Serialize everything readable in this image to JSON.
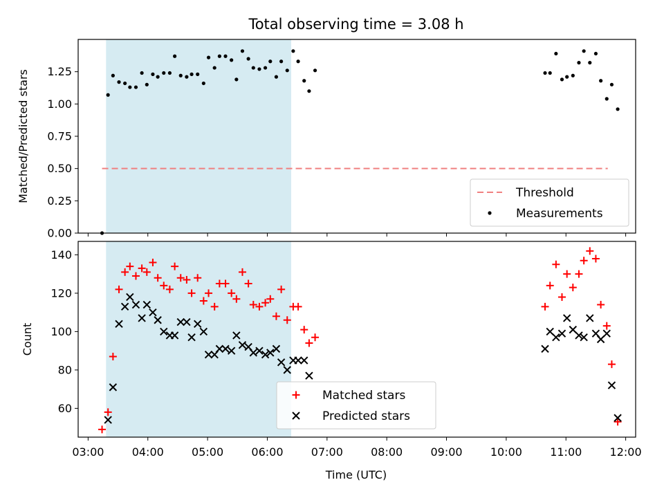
{
  "chart_data": {
    "type": "scatter",
    "title": "Total observing time = 3.08 h",
    "xlabel": "Time (UTC)",
    "xlim": [
      "03:00",
      "12:00"
    ],
    "x_tick_labels": [
      "03:00",
      "04:00",
      "05:00",
      "06:00",
      "07:00",
      "08:00",
      "09:00",
      "10:00",
      "11:00",
      "12:00"
    ],
    "shaded_region": {
      "x_start": "03:18",
      "x_end": "06:24",
      "color": "#add8e6"
    },
    "panels": [
      {
        "ylabel": "Matched/Predicted stars",
        "ylim": [
          0,
          1.5
        ],
        "y_tick_labels": [
          "0.00",
          "0.25",
          "0.50",
          "0.75",
          "1.00",
          "1.25"
        ],
        "legend_position": "bottom-right",
        "threshold": {
          "name": "Threshold",
          "value": 0.5,
          "x_start": "03:14",
          "x_end": "11:42",
          "color": "#f08080"
        },
        "series": [
          {
            "name": "Measurements",
            "marker": "dot",
            "color": "#000000",
            "points": [
              [
                "03:14",
                0.0
              ],
              [
                "03:20",
                1.07
              ],
              [
                "03:25",
                1.22
              ],
              [
                "03:31",
                1.17
              ],
              [
                "03:37",
                1.16
              ],
              [
                "03:42",
                1.13
              ],
              [
                "03:48",
                1.13
              ],
              [
                "03:54",
                1.24
              ],
              [
                "03:59",
                1.15
              ],
              [
                "04:05",
                1.23
              ],
              [
                "04:10",
                1.21
              ],
              [
                "04:16",
                1.24
              ],
              [
                "04:22",
                1.24
              ],
              [
                "04:27",
                1.37
              ],
              [
                "04:33",
                1.22
              ],
              [
                "04:39",
                1.21
              ],
              [
                "04:44",
                1.23
              ],
              [
                "04:50",
                1.23
              ],
              [
                "04:56",
                1.16
              ],
              [
                "05:01",
                1.36
              ],
              [
                "05:07",
                1.28
              ],
              [
                "05:12",
                1.37
              ],
              [
                "05:18",
                1.37
              ],
              [
                "05:24",
                1.34
              ],
              [
                "05:29",
                1.19
              ],
              [
                "05:35",
                1.41
              ],
              [
                "05:41",
                1.35
              ],
              [
                "05:46",
                1.28
              ],
              [
                "05:52",
                1.27
              ],
              [
                "05:58",
                1.28
              ],
              [
                "06:03",
                1.33
              ],
              [
                "06:09",
                1.21
              ],
              [
                "06:14",
                1.33
              ],
              [
                "06:20",
                1.26
              ],
              [
                "06:26",
                1.41
              ],
              [
                "06:31",
                1.33
              ],
              [
                "06:37",
                1.18
              ],
              [
                "06:42",
                1.1
              ],
              [
                "06:48",
                1.26
              ],
              [
                "10:39",
                1.24
              ],
              [
                "10:44",
                1.24
              ],
              [
                "10:50",
                1.39
              ],
              [
                "10:56",
                1.19
              ],
              [
                "11:01",
                1.21
              ],
              [
                "11:07",
                1.22
              ],
              [
                "11:13",
                1.32
              ],
              [
                "11:18",
                1.41
              ],
              [
                "11:24",
                1.32
              ],
              [
                "11:30",
                1.39
              ],
              [
                "11:35",
                1.18
              ],
              [
                "11:41",
                1.04
              ],
              [
                "11:46",
                1.15
              ],
              [
                "11:52",
                0.96
              ]
            ]
          }
        ]
      },
      {
        "ylabel": "Count",
        "ylim": [
          45,
          147
        ],
        "y_tick_labels": [
          "60",
          "80",
          "100",
          "120",
          "140"
        ],
        "legend_position": "bottom-center",
        "series": [
          {
            "name": "Matched stars",
            "marker": "plus",
            "color": "#ff0000",
            "points": [
              [
                "03:14",
                49
              ],
              [
                "03:20",
                58
              ],
              [
                "03:25",
                87
              ],
              [
                "03:31",
                122
              ],
              [
                "03:37",
                131
              ],
              [
                "03:42",
                134
              ],
              [
                "03:48",
                129
              ],
              [
                "03:54",
                133
              ],
              [
                "03:59",
                131
              ],
              [
                "04:05",
                136
              ],
              [
                "04:10",
                128
              ],
              [
                "04:16",
                124
              ],
              [
                "04:22",
                122
              ],
              [
                "04:27",
                134
              ],
              [
                "04:33",
                128
              ],
              [
                "04:39",
                127
              ],
              [
                "04:44",
                120
              ],
              [
                "04:50",
                128
              ],
              [
                "04:56",
                116
              ],
              [
                "05:01",
                120
              ],
              [
                "05:07",
                113
              ],
              [
                "05:12",
                125
              ],
              [
                "05:18",
                125
              ],
              [
                "05:24",
                120
              ],
              [
                "05:29",
                117
              ],
              [
                "05:35",
                131
              ],
              [
                "05:41",
                125
              ],
              [
                "05:46",
                114
              ],
              [
                "05:52",
                113
              ],
              [
                "05:58",
                115
              ],
              [
                "06:03",
                117
              ],
              [
                "06:09",
                108
              ],
              [
                "06:14",
                122
              ],
              [
                "06:20",
                106
              ],
              [
                "06:26",
                113
              ],
              [
                "06:31",
                113
              ],
              [
                "06:37",
                101
              ],
              [
                "06:42",
                94
              ],
              [
                "06:48",
                97
              ],
              [
                "10:39",
                113
              ],
              [
                "10:44",
                124
              ],
              [
                "10:50",
                135
              ],
              [
                "10:56",
                118
              ],
              [
                "11:01",
                130
              ],
              [
                "11:07",
                123
              ],
              [
                "11:13",
                130
              ],
              [
                "11:18",
                137
              ],
              [
                "11:24",
                142
              ],
              [
                "11:30",
                138
              ],
              [
                "11:35",
                114
              ],
              [
                "11:41",
                103
              ],
              [
                "11:46",
                83
              ],
              [
                "11:52",
                53
              ]
            ]
          },
          {
            "name": "Predicted stars",
            "marker": "x",
            "color": "#000000",
            "points": [
              [
                "03:20",
                54
              ],
              [
                "03:25",
                71
              ],
              [
                "03:31",
                104
              ],
              [
                "03:37",
                113
              ],
              [
                "03:42",
                118
              ],
              [
                "03:48",
                114
              ],
              [
                "03:54",
                107
              ],
              [
                "03:59",
                114
              ],
              [
                "04:05",
                110
              ],
              [
                "04:10",
                106
              ],
              [
                "04:16",
                100
              ],
              [
                "04:22",
                98
              ],
              [
                "04:27",
                98
              ],
              [
                "04:33",
                105
              ],
              [
                "04:39",
                105
              ],
              [
                "04:44",
                97
              ],
              [
                "04:50",
                104
              ],
              [
                "04:56",
                100
              ],
              [
                "05:01",
                88
              ],
              [
                "05:07",
                88
              ],
              [
                "05:12",
                91
              ],
              [
                "05:18",
                91
              ],
              [
                "05:24",
                90
              ],
              [
                "05:29",
                98
              ],
              [
                "05:35",
                93
              ],
              [
                "05:41",
                92
              ],
              [
                "05:46",
                89
              ],
              [
                "05:52",
                90
              ],
              [
                "05:58",
                88
              ],
              [
                "06:03",
                89
              ],
              [
                "06:09",
                91
              ],
              [
                "06:14",
                84
              ],
              [
                "06:20",
                80
              ],
              [
                "06:26",
                85
              ],
              [
                "06:31",
                85
              ],
              [
                "06:37",
                85
              ],
              [
                "06:42",
                77
              ],
              [
                "10:39",
                91
              ],
              [
                "10:44",
                100
              ],
              [
                "10:50",
                97
              ],
              [
                "10:56",
                99
              ],
              [
                "11:01",
                107
              ],
              [
                "11:07",
                101
              ],
              [
                "11:13",
                98
              ],
              [
                "11:18",
                97
              ],
              [
                "11:24",
                107
              ],
              [
                "11:30",
                99
              ],
              [
                "11:35",
                96
              ],
              [
                "11:41",
                99
              ],
              [
                "11:46",
                72
              ],
              [
                "11:52",
                55
              ]
            ]
          }
        ]
      }
    ]
  }
}
